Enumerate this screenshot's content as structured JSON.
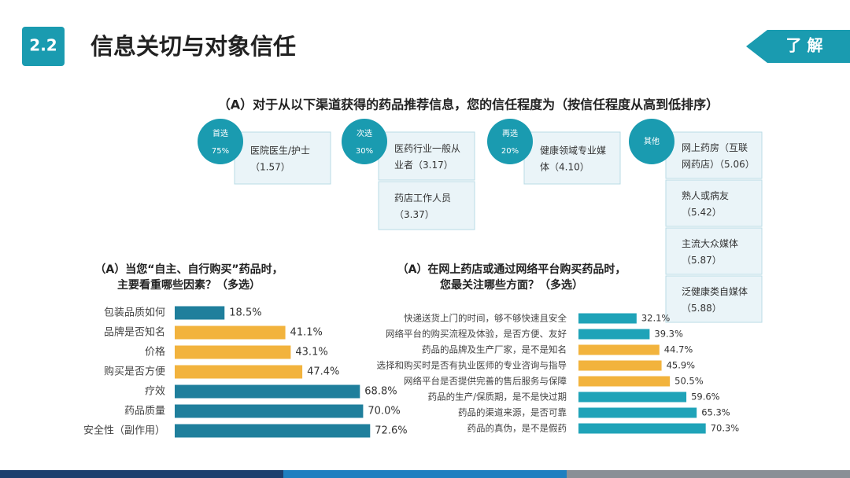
{
  "header": {
    "section": "2.2",
    "title": "信息关切与对象信任",
    "tag": "了 解"
  },
  "trust": {
    "title": "（A）对于从以下渠道获得的药品推荐信息，您的信任程度为（按信任程度从高到低排序）",
    "groups": [
      {
        "badge": "首选",
        "share": "75%",
        "items": [
          [
            "医院医生/护士",
            "（1.57）"
          ]
        ]
      },
      {
        "badge": "次选",
        "share": "30%",
        "items": [
          [
            "医药行业一般从",
            "业者（3.17）"
          ],
          [
            "药店工作人员",
            "（3.37）"
          ]
        ]
      },
      {
        "badge": "再选",
        "share": "20%",
        "items": [
          [
            "健康领域专业媒",
            "体（4.10）"
          ]
        ]
      },
      {
        "badge": "其他",
        "items": [
          [
            "网上药房（互联",
            "网药店）（5.06）"
          ],
          [
            "熟人或病友",
            "（5.42）"
          ],
          [
            "主流大众媒体",
            "（5.87）"
          ],
          [
            "泛健康类自媒体",
            "（5.88）"
          ]
        ]
      }
    ]
  },
  "chart_data": [
    {
      "type": "bar",
      "title": [
        "（A）当您“自主、自行购买”药品时，",
        "主要看重哪些因素？（多选）"
      ],
      "categories": [
        "包装品质如何",
        "品牌是否知名",
        "价格",
        "购买是否方便",
        "疗效",
        "药品质量",
        "安全性（副作用）"
      ],
      "values": [
        18.5,
        41.1,
        43.1,
        47.4,
        68.8,
        70.0,
        72.6
      ],
      "value_labels": [
        "18.5%",
        "41.1%",
        "43.1%",
        "47.4%",
        "68.8%",
        "70.0%",
        "72.6%"
      ],
      "colors": [
        "#1f7f9c",
        "#f2b33d",
        "#f2b33d",
        "#f2b33d",
        "#1f7f9c",
        "#1f7f9c",
        "#1f7f9c"
      ]
    },
    {
      "type": "bar",
      "title": [
        "（A）在网上药店或通过网络平台购买药品时，",
        "您最关注哪些方面？（多选）"
      ],
      "categories": [
        "快递送货上门的时间，够不够快速且安全",
        "网络平台的购买流程及体验，是否方便、友好",
        "药品的品牌及生产厂家，是不是知名",
        "选择和购买时是否有执业医师的专业咨询与指导",
        "网络平台是否提供完善的售后服务与保障",
        "药品的生产/保质期，是不是快过期",
        "药品的渠道来源，是否可靠",
        "药品的真伪，是不是假药"
      ],
      "values": [
        32.1,
        39.3,
        44.7,
        45.9,
        50.5,
        59.6,
        65.3,
        70.3
      ],
      "value_labels": [
        "32.1%",
        "39.3%",
        "44.7%",
        "45.9%",
        "50.5%",
        "59.6%",
        "65.3%",
        "70.3%"
      ],
      "colors": [
        "#1fa3b8",
        "#1fa3b8",
        "#f2b33d",
        "#f2b33d",
        "#f2b33d",
        "#1fa3b8",
        "#1fa3b8",
        "#1fa3b8"
      ]
    }
  ]
}
